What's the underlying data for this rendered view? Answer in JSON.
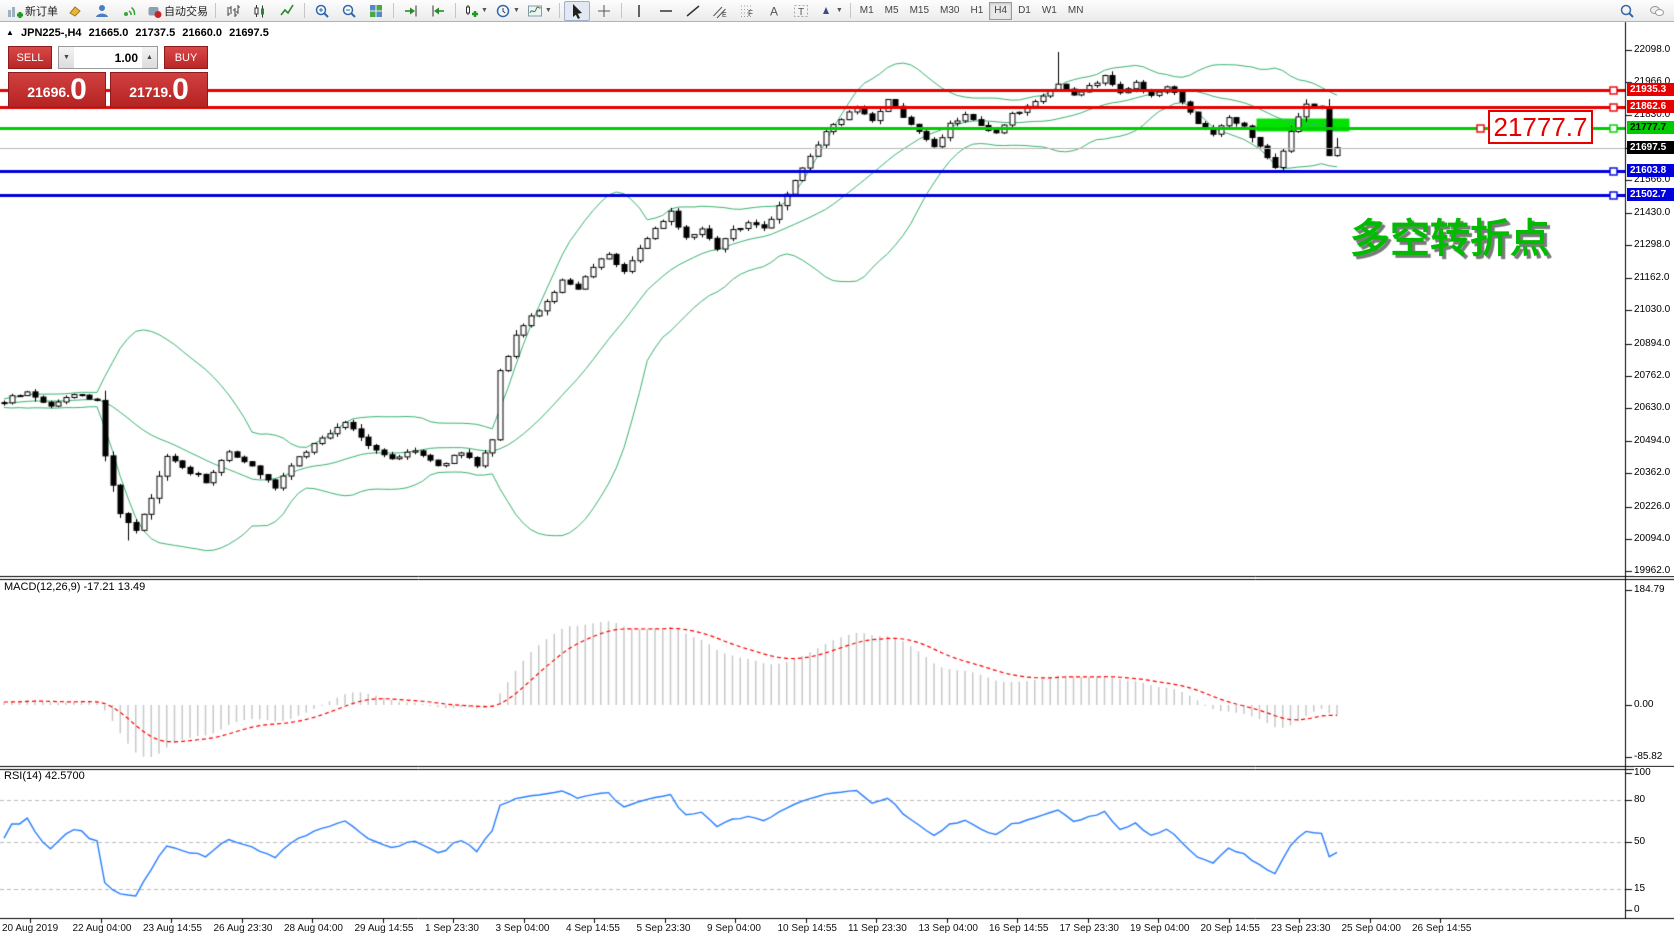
{
  "toolbar": {
    "new_order_label": "新订单",
    "autotrading_label": "自动交易",
    "timeframe_labels": [
      "M1",
      "M5",
      "M15",
      "M30",
      "H1",
      "H4",
      "D1",
      "W1",
      "MN"
    ],
    "active_timeframe": "H4"
  },
  "chart_header": {
    "symbol_period": "JPN225-,H4",
    "open": "21665.0",
    "high": "21737.5",
    "low": "21660.0",
    "close": "21697.5"
  },
  "trade_panel": {
    "sell_label": "SELL",
    "buy_label": "BUY",
    "volume_value": "1.00",
    "sell_price_int": "21696",
    "sell_price_pip": "0",
    "buy_price_int": "21719",
    "buy_price_pip": "0"
  },
  "price_axis_ticks": [
    "22098.0",
    "21966.0",
    "21830.0",
    "21698.0",
    "21566.0",
    "21430.0",
    "21298.0",
    "21162.0",
    "21030.0",
    "20894.0",
    "20762.0",
    "20630.0",
    "20494.0",
    "20362.0",
    "20226.0",
    "20094.0",
    "19962.0"
  ],
  "horizontal_lines": [
    {
      "price": 21935.3,
      "label": "21935.3",
      "color": "#e60000",
      "text_color": "#ffffff",
      "width": 3
    },
    {
      "price": 21862.6,
      "label": "21862.6",
      "color": "#e60000",
      "text_color": "#ffffff",
      "width": 3
    },
    {
      "price": 21777.7,
      "label": "21777.7",
      "color": "#00cc00",
      "text_color": "#000000",
      "width": 3
    },
    {
      "price": 21603.8,
      "label": "21603.8",
      "color": "#0000dd",
      "text_color": "#ffffff",
      "width": 3
    },
    {
      "price": 21502.7,
      "label": "21502.7",
      "color": "#0000dd",
      "text_color": "#ffffff",
      "width": 3
    }
  ],
  "bid_line": {
    "price": 21697.5,
    "label": "21697.5",
    "line_color": "#b9b9b9",
    "chip_bg": "#000000",
    "text_color": "#ffffff"
  },
  "annotations": {
    "price_callout": {
      "text": "21777.7",
      "color": "#e60000"
    },
    "turning_point": {
      "text": "多空转折点",
      "color": "#00bb00"
    },
    "highlight_rect": {
      "from_bar": 162,
      "to_bar": 174,
      "price_top": 21817,
      "price_bottom": 21764,
      "color": "#00e400"
    }
  },
  "macd_pane": {
    "label": "MACD(12,26,9) -17.21 13.49",
    "value": "-17.21",
    "signal": "13.49",
    "axis_ticks": [
      "184.79",
      "0.00",
      "-85.82"
    ],
    "histogram_color": "#c9c9c9",
    "signal_color": "#ff0000"
  },
  "rsi_pane": {
    "label": "RSI(14) 42.5700",
    "value": "42.5700",
    "axis_ticks": [
      100,
      80,
      50,
      15,
      0
    ],
    "levels": [
      80,
      50,
      15
    ],
    "line_color": "#2a7fff"
  },
  "time_axis": {
    "labels": [
      "20 Aug 2019",
      "22 Aug 04:00",
      "23 Aug 14:55",
      "26 Aug 23:30",
      "28 Aug 04:00",
      "29 Aug 14:55",
      "1 Sep 23:30",
      "3 Sep 04:00",
      "4 Sep 14:55",
      "5 Sep 23:30",
      "9 Sep 04:00",
      "10 Sep 14:55",
      "11 Sep 23:30",
      "13 Sep 04:00",
      "16 Sep 14:55",
      "17 Sep 23:30",
      "19 Sep 04:00",
      "20 Sep 14:55",
      "23 Sep 23:30",
      "25 Sep 04:00",
      "26 Sep 14:55"
    ]
  },
  "chart_data": {
    "type": "candlestick",
    "symbol": "JPN225-",
    "period": "H4",
    "bars": 173,
    "y_range": {
      "top_price": 22098.0,
      "bottom_price": 19962.0
    },
    "price_keyframes": [
      [
        0,
        20660
      ],
      [
        3,
        20700
      ],
      [
        6,
        20640
      ],
      [
        9,
        20690
      ],
      [
        12,
        20660
      ],
      [
        13,
        20430
      ],
      [
        14,
        20320
      ],
      [
        15,
        20190
      ],
      [
        17,
        20120
      ],
      [
        19,
        20260
      ],
      [
        21,
        20430
      ],
      [
        23,
        20390
      ],
      [
        26,
        20330
      ],
      [
        29,
        20450
      ],
      [
        32,
        20390
      ],
      [
        35,
        20310
      ],
      [
        38,
        20430
      ],
      [
        41,
        20510
      ],
      [
        44,
        20570
      ],
      [
        47,
        20480
      ],
      [
        50,
        20420
      ],
      [
        53,
        20460
      ],
      [
        56,
        20390
      ],
      [
        59,
        20450
      ],
      [
        61,
        20400
      ],
      [
        63,
        20500
      ],
      [
        64,
        20780
      ],
      [
        66,
        20920
      ],
      [
        68,
        21010
      ],
      [
        70,
        21060
      ],
      [
        72,
        21160
      ],
      [
        74,
        21110
      ],
      [
        76,
        21210
      ],
      [
        78,
        21260
      ],
      [
        80,
        21190
      ],
      [
        82,
        21290
      ],
      [
        84,
        21360
      ],
      [
        86,
        21430
      ],
      [
        88,
        21330
      ],
      [
        90,
        21370
      ],
      [
        92,
        21290
      ],
      [
        94,
        21360
      ],
      [
        96,
        21390
      ],
      [
        98,
        21360
      ],
      [
        100,
        21460
      ],
      [
        102,
        21560
      ],
      [
        104,
        21660
      ],
      [
        106,
        21760
      ],
      [
        108,
        21810
      ],
      [
        110,
        21860
      ],
      [
        112,
        21800
      ],
      [
        114,
        21890
      ],
      [
        116,
        21830
      ],
      [
        118,
        21760
      ],
      [
        120,
        21700
      ],
      [
        122,
        21790
      ],
      [
        124,
        21830
      ],
      [
        126,
        21780
      ],
      [
        128,
        21750
      ],
      [
        130,
        21830
      ],
      [
        132,
        21860
      ],
      [
        134,
        21910
      ],
      [
        136,
        21960
      ],
      [
        138,
        21910
      ],
      [
        140,
        21950
      ],
      [
        142,
        21985
      ],
      [
        144,
        21925
      ],
      [
        146,
        21965
      ],
      [
        148,
        21905
      ],
      [
        150,
        21950
      ],
      [
        152,
        21885
      ],
      [
        154,
        21805
      ],
      [
        156,
        21755
      ],
      [
        158,
        21825
      ],
      [
        160,
        21785
      ],
      [
        162,
        21705
      ],
      [
        164,
        21625
      ],
      [
        166,
        21755
      ],
      [
        168,
        21885
      ],
      [
        170,
        21860
      ],
      [
        171,
        21665
      ],
      [
        172,
        21697.5
      ]
    ],
    "spike_high": {
      "bar": 136,
      "price": 22090
    },
    "spike_low": {
      "bar": 16,
      "price": 20087
    },
    "last_bar": {
      "open": 21665.0,
      "high": 21737.5,
      "low": 21660.0,
      "close": 21697.5
    },
    "indicators": {
      "bollinger": {
        "period": 20,
        "deviation": 2,
        "color": "#3cb371"
      },
      "macd": {
        "fast": 12,
        "slow": 26,
        "signal": 9
      },
      "rsi": {
        "period": 14
      }
    }
  }
}
